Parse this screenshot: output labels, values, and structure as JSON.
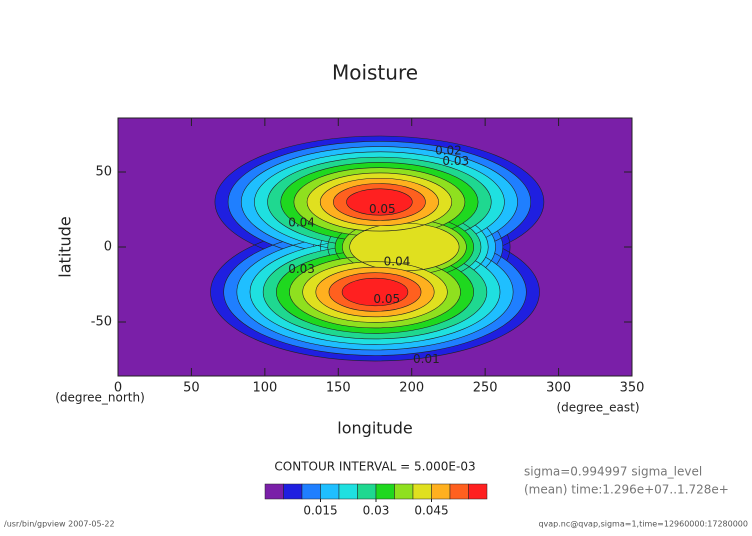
{
  "chart_data": {
    "type": "contour",
    "title": "Moisture",
    "xlabel": "longitude",
    "ylabel": "latitude",
    "xunit": "(degree_east)",
    "yunit": "(degree_north)",
    "xlim": [
      0,
      350
    ],
    "ylim": [
      -86,
      86
    ],
    "xticks": [
      0,
      50,
      100,
      150,
      200,
      250,
      300,
      350
    ],
    "yticks": [
      -50,
      0,
      50
    ],
    "levels": [
      0,
      0.005,
      0.01,
      0.015,
      0.02,
      0.025,
      0.03,
      0.035,
      0.04,
      0.045,
      0.05,
      0.055,
      0.06
    ],
    "colors": [
      "#7a1fa8",
      "#1f1fe0",
      "#1f7fff",
      "#1fbfff",
      "#1fe0e0",
      "#1fd890",
      "#1fd81f",
      "#8fe01f",
      "#e0e01f",
      "#ffb01f",
      "#ff601f",
      "#ff2020",
      "#ffb0c0"
    ],
    "colorbar_ticks": [
      0.015,
      0.03,
      0.045
    ],
    "contour_labels": [
      {
        "value": 0.01,
        "x": 210,
        "y": -75
      },
      {
        "value": 0.02,
        "x": 225,
        "y": 64
      },
      {
        "value": 0.03,
        "x": 230,
        "y": 57
      },
      {
        "value": 0.05,
        "x": 180,
        "y": 25
      },
      {
        "value": 0.04,
        "x": 125,
        "y": 16
      },
      {
        "value": 0.04,
        "x": 190,
        "y": -10
      },
      {
        "value": 0.05,
        "x": 183,
        "y": -35
      },
      {
        "value": 0.03,
        "x": 125,
        "y": -15
      }
    ],
    "contour_interval": "CONTOUR INTERVAL = 5.000E-03",
    "info": [
      "sigma=0.994997 sigma_level",
      "(mean) time:1.296e+07..1.728e+"
    ],
    "footer_left": "/usr/bin/gpview  2007-05-22",
    "footer_right": "qvap.nc@qvap,sigma=1,time=12960000:17280000"
  }
}
